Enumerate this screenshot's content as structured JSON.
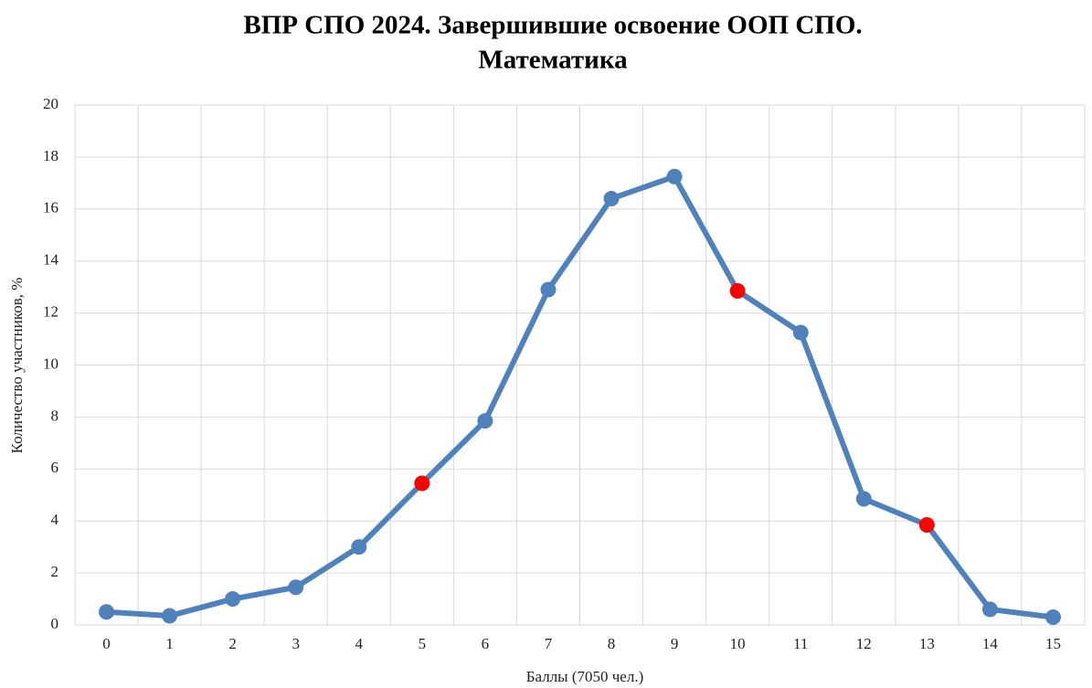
{
  "chart_data": {
    "type": "line",
    "title": [
      "ВПР СПО 2024. Завершившие освоение ООП СПО.",
      "Математика"
    ],
    "x_label": "Баллы (7050 чел.)",
    "y_label": "Количество участников, %",
    "categories": [
      "0",
      "1",
      "2",
      "3",
      "4",
      "5",
      "6",
      "7",
      "8",
      "9",
      "10",
      "11",
      "12",
      "13",
      "14",
      "15"
    ],
    "series": [
      {
        "color": "#4f81bd",
        "values": [
          0.5,
          0.35,
          1.0,
          1.45,
          3.0,
          5.45,
          7.85,
          12.9,
          16.4,
          17.25,
          12.85,
          11.25,
          4.85,
          3.85,
          0.6,
          0.3
        ],
        "marker_colors": [
          "#4f81bd",
          "#4f81bd",
          "#4f81bd",
          "#4f81bd",
          "#4f81bd",
          "#ff0000",
          "#4f81bd",
          "#4f81bd",
          "#4f81bd",
          "#4f81bd",
          "#ff0000",
          "#4f81bd",
          "#4f81bd",
          "#ff0000",
          "#4f81bd",
          "#4f81bd"
        ]
      }
    ],
    "ylim": [
      0,
      20
    ],
    "yticks": [
      0,
      2,
      4,
      6,
      8,
      10,
      12,
      14,
      16,
      18,
      20
    ],
    "grid": true
  }
}
